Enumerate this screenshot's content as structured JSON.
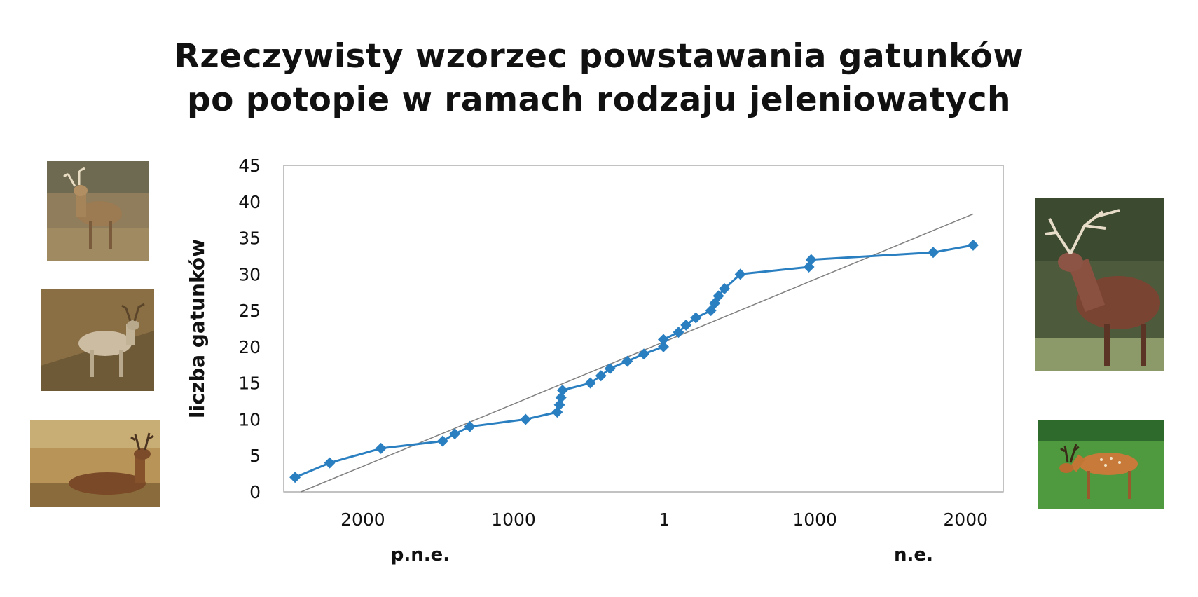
{
  "title_lines": [
    "Rzeczywisty wzorzec powstawania gatunków",
    "po potopie w ramach rodzaju jeleniowatych"
  ],
  "chart_data": {
    "type": "line",
    "title": "Rzeczywisty wzorzec powstawania gatunków po potopie w ramach rodzaju jeleniowatych",
    "ylabel": "liczba gatunków",
    "xlabel": "",
    "era_labels": {
      "bc": "p.n.e.",
      "ad": "n.e."
    },
    "ylim": [
      0,
      45
    ],
    "yticks": [
      "0",
      "5",
      "10",
      "15",
      "20",
      "25",
      "30",
      "35",
      "40",
      "45"
    ],
    "xlim": [
      -2525,
      2250
    ],
    "xticks": [
      {
        "value": -2000,
        "label": "2000"
      },
      {
        "value": -1000,
        "label": "1000"
      },
      {
        "value": 1,
        "label": "1"
      },
      {
        "value": 1000,
        "label": "1000"
      },
      {
        "value": 2000,
        "label": "2000"
      }
    ],
    "grid": false,
    "series": [
      {
        "style": "line-with-diamond-markers",
        "color": "#2a7fc1",
        "points": [
          [
            -2450,
            2
          ],
          [
            -2220,
            4
          ],
          [
            -1880,
            6
          ],
          [
            -1470,
            7
          ],
          [
            -1390,
            8
          ],
          [
            -1290,
            9
          ],
          [
            -920,
            10
          ],
          [
            -710,
            11
          ],
          [
            -695,
            12
          ],
          [
            -685,
            13
          ],
          [
            -675,
            14
          ],
          [
            -490,
            15
          ],
          [
            -420,
            16
          ],
          [
            -360,
            17
          ],
          [
            -245,
            18
          ],
          [
            -135,
            19
          ],
          [
            -5,
            20
          ],
          [
            -5,
            21
          ],
          [
            95,
            22
          ],
          [
            145,
            23
          ],
          [
            210,
            24
          ],
          [
            310,
            25
          ],
          [
            335,
            26
          ],
          [
            360,
            27
          ],
          [
            400,
            28
          ],
          [
            505,
            30
          ],
          [
            960,
            31
          ],
          [
            975,
            32
          ],
          [
            1785,
            33
          ],
          [
            2050,
            34
          ]
        ]
      },
      {
        "style": "trend-line",
        "color": "#808080",
        "points": [
          [
            -2410,
            0
          ],
          [
            2050,
            38.3
          ]
        ]
      }
    ]
  },
  "images": [
    {
      "alt": "white-tailed deer",
      "palette": "#8a7858"
    },
    {
      "alt": "reindeer",
      "palette": "#6e5a3a"
    },
    {
      "alt": "hog deer",
      "palette": "#b49155"
    },
    {
      "alt": "red deer stag",
      "palette": "#6b7a55"
    },
    {
      "alt": "sika deer",
      "palette": "#4e9a3f"
    }
  ]
}
